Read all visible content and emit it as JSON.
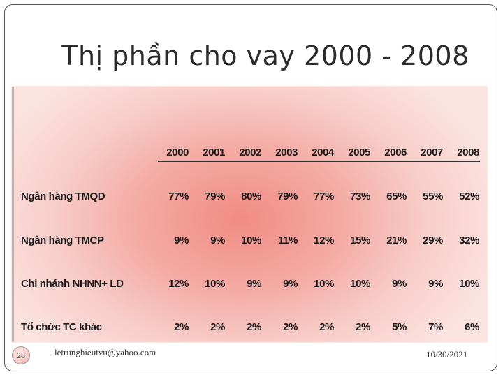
{
  "slide": {
    "title": "Thị phần cho vay 2000 - 2008",
    "footer": {
      "page_number": "28",
      "email": "letrunghieutvu@yahoo.com",
      "date": "10/30/2021"
    }
  },
  "table": {
    "years": [
      "2000",
      "2001",
      "2002",
      "2003",
      "2004",
      "2005",
      "2006",
      "2007",
      "2008"
    ],
    "rows": [
      {
        "label": "Ngân hàng TMQD",
        "values": [
          "77%",
          "79%",
          "80%",
          "79%",
          "77%",
          "73%",
          "65%",
          "55%",
          "52%"
        ]
      },
      {
        "label": "Ngân hàng TMCP",
        "values": [
          "9%",
          "9%",
          "10%",
          "11%",
          "12%",
          "15%",
          "21%",
          "29%",
          "32%"
        ]
      },
      {
        "label": "Chi nhánh NHNN+ LD",
        "values": [
          "12%",
          "10%",
          "9%",
          "9%",
          "10%",
          "10%",
          "9%",
          "9%",
          "10%"
        ]
      },
      {
        "label": "Tổ chức TC khác",
        "values": [
          "2%",
          "2%",
          "2%",
          "2%",
          "2%",
          "2%",
          "5%",
          "7%",
          "6%"
        ]
      }
    ]
  },
  "colors": {
    "panel_center": "#f08c84",
    "panel_edge": "#fbe3e0",
    "text": "#1a1a1a"
  }
}
